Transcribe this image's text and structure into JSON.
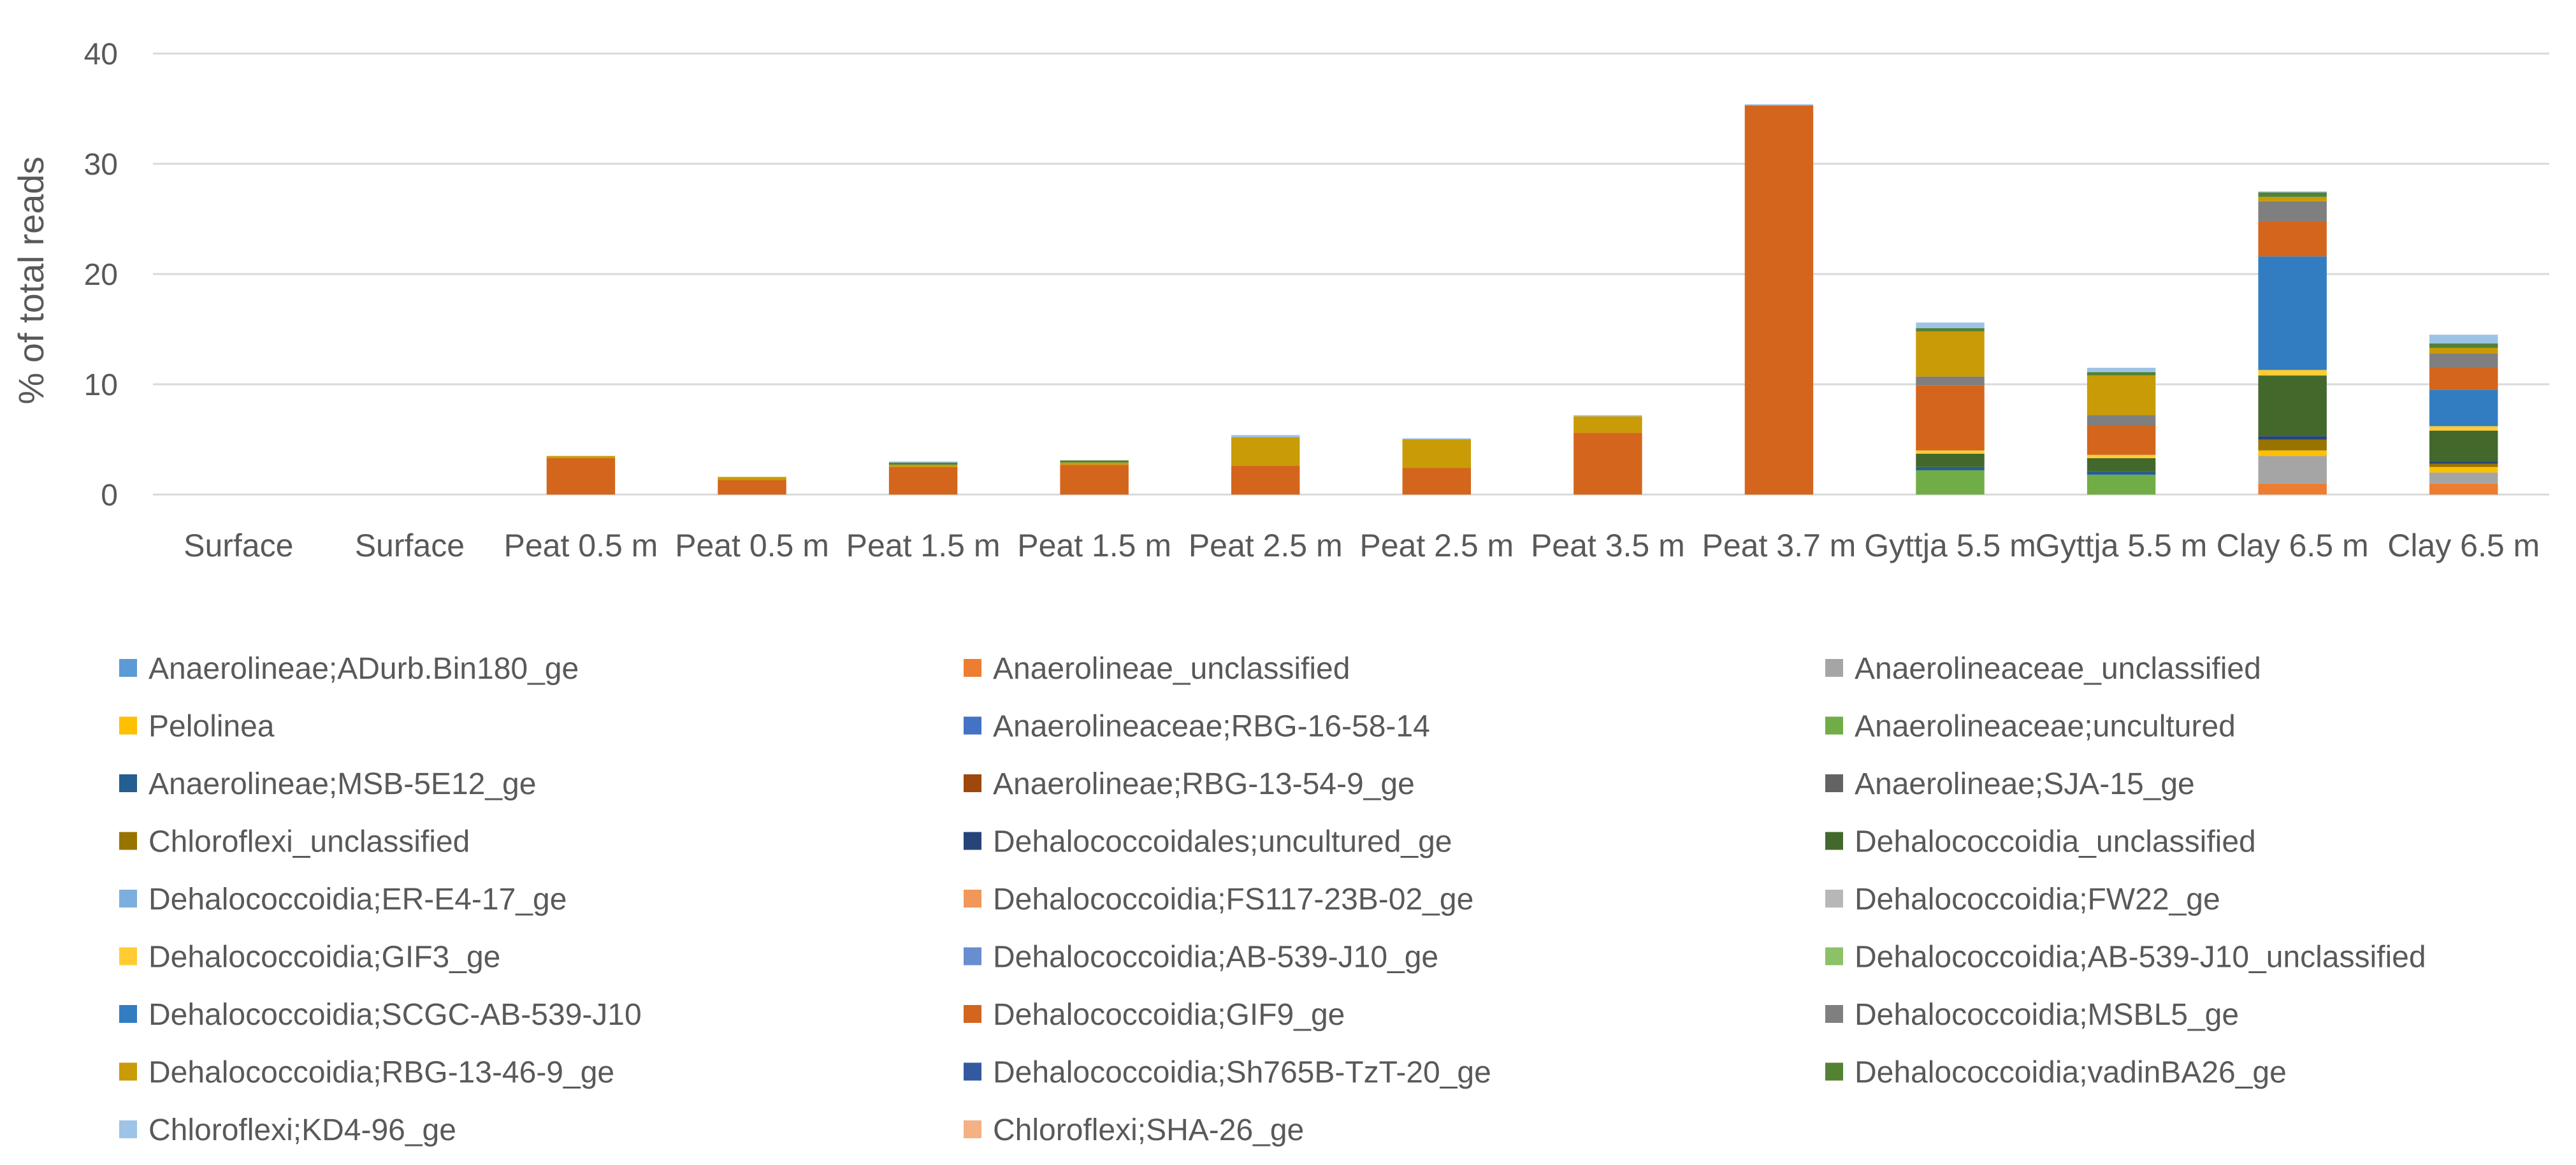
{
  "chart_data": {
    "type": "bar",
    "stacked": true,
    "title": "",
    "xlabel": "",
    "ylabel": "% of total reads",
    "ylim": [
      0,
      40
    ],
    "yticks": [
      0,
      10,
      20,
      30,
      40
    ],
    "grid": true,
    "legend_position": "bottom",
    "categories": [
      "Surface",
      "Surface",
      "Peat 0.5 m",
      "Peat 0.5 m",
      "Peat 1.5 m",
      "Peat 1.5 m",
      "Peat 2.5 m",
      "Peat 2.5 m",
      "Peat 3.5 m",
      "Peat 3.7 m",
      "Gyttja 5.5 m",
      "Gyttja 5.5 m",
      "Clay 6.5 m",
      "Clay 6.5 m"
    ],
    "series": [
      {
        "name": "Anaerolineae;ADurb.Bin180_ge",
        "color": "#5B9BD5",
        "values": [
          0,
          0,
          0,
          0,
          0,
          0,
          0,
          0,
          0,
          0,
          0,
          0,
          0,
          0
        ]
      },
      {
        "name": "Anaerolineae_unclassified",
        "color": "#ED7D31",
        "values": [
          0,
          0,
          0,
          0,
          0,
          0,
          0,
          0,
          0,
          0,
          0,
          0,
          1.0,
          1.0
        ]
      },
      {
        "name": "Anaerolineaceae_unclassified",
        "color": "#A5A5A5",
        "values": [
          0,
          0,
          0,
          0,
          0,
          0,
          0,
          0,
          0,
          0,
          0,
          0,
          2.5,
          1.0
        ]
      },
      {
        "name": "Pelolinea",
        "color": "#FFC000",
        "values": [
          0,
          0,
          0,
          0,
          0,
          0,
          0,
          0,
          0,
          0,
          0,
          0,
          0.5,
          0.5
        ]
      },
      {
        "name": "Anaerolineaceae;RBG-16-58-14",
        "color": "#4472C4",
        "values": [
          0,
          0,
          0,
          0,
          0,
          0,
          0,
          0,
          0,
          0,
          0,
          0,
          0,
          0
        ]
      },
      {
        "name": "Anaerolineaceae;uncultured",
        "color": "#70AD47",
        "values": [
          0,
          0,
          0,
          0,
          0,
          0,
          0,
          0,
          0,
          0,
          2.2,
          1.8,
          0,
          0
        ]
      },
      {
        "name": "Anaerolineae;MSB-5E12_ge",
        "color": "#255E91",
        "values": [
          0,
          0,
          0,
          0,
          0,
          0,
          0,
          0,
          0,
          0,
          0.3,
          0.3,
          0,
          0
        ]
      },
      {
        "name": "Anaerolineae;RBG-13-54-9_ge",
        "color": "#9E480E",
        "values": [
          0,
          0,
          0,
          0,
          0,
          0,
          0,
          0,
          0,
          0,
          0,
          0,
          0,
          0
        ]
      },
      {
        "name": "Anaerolineae;SJA-15_ge",
        "color": "#636363",
        "values": [
          0,
          0,
          0,
          0,
          0,
          0,
          0,
          0,
          0,
          0,
          0,
          0,
          0,
          0
        ]
      },
      {
        "name": "Chloroflexi_unclassified",
        "color": "#997300",
        "values": [
          0,
          0,
          0,
          0,
          0,
          0,
          0,
          0,
          0,
          0,
          0,
          0,
          1.0,
          0.3
        ]
      },
      {
        "name": "Dehalococcoidales;uncultured_ge",
        "color": "#264478",
        "values": [
          0,
          0,
          0,
          0,
          0,
          0,
          0,
          0,
          0,
          0,
          0,
          0,
          0.3,
          0.2
        ]
      },
      {
        "name": "Dehalococcoidia_unclassified",
        "color": "#43682B",
        "values": [
          0,
          0,
          0,
          0,
          0,
          0,
          0,
          0,
          0,
          0,
          1.2,
          1.2,
          5.5,
          2.8
        ]
      },
      {
        "name": "Dehalococcoidia;ER-E4-17_ge",
        "color": "#7CAFDD",
        "values": [
          0,
          0,
          0,
          0,
          0,
          0,
          0,
          0,
          0,
          0,
          0,
          0,
          0,
          0
        ]
      },
      {
        "name": "Dehalococcoidia;FS117-23B-02_ge",
        "color": "#F1975A",
        "values": [
          0,
          0,
          0,
          0,
          0,
          0,
          0,
          0,
          0,
          0,
          0,
          0,
          0,
          0
        ]
      },
      {
        "name": "Dehalococcoidia;FW22_ge",
        "color": "#B7B7B7",
        "values": [
          0,
          0,
          0,
          0,
          0,
          0,
          0,
          0,
          0,
          0,
          0,
          0,
          0,
          0
        ]
      },
      {
        "name": "Dehalococcoidia;GIF3_ge",
        "color": "#FFCD33",
        "values": [
          0,
          0,
          0,
          0,
          0,
          0,
          0,
          0,
          0,
          0,
          0.3,
          0.3,
          0.5,
          0.4
        ]
      },
      {
        "name": "Dehalococcoidia;AB-539-J10_ge",
        "color": "#698ED0",
        "values": [
          0,
          0,
          0,
          0,
          0,
          0,
          0,
          0,
          0,
          0,
          0,
          0,
          0,
          0
        ]
      },
      {
        "name": "Dehalococcoidia;AB-539-J10_unclassified",
        "color": "#8CC168",
        "values": [
          0,
          0,
          0,
          0,
          0,
          0,
          0,
          0,
          0,
          0,
          0,
          0,
          0,
          0
        ]
      },
      {
        "name": "Dehalococcoidia;SCGC-AB-539-J10",
        "color": "#327DC2",
        "values": [
          0,
          0,
          0,
          0,
          0,
          0,
          0,
          0,
          0,
          0,
          0,
          0,
          10.3,
          3.3
        ]
      },
      {
        "name": "Dehalococcoidia;GIF9_ge",
        "color": "#D4651C",
        "values": [
          0,
          0,
          3.3,
          1.3,
          2.5,
          2.7,
          2.6,
          2.4,
          5.6,
          35.3,
          5.9,
          2.7,
          3.2,
          2.0
        ]
      },
      {
        "name": "Dehalococcoidia;MSBL5_ge",
        "color": "#7F7F7F",
        "values": [
          0,
          0,
          0,
          0,
          0,
          0,
          0,
          0,
          0,
          0,
          0.8,
          0.9,
          1.8,
          1.3
        ]
      },
      {
        "name": "Dehalococcoidia;RBG-13-46-9_ge",
        "color": "#C99B07",
        "values": [
          0,
          0,
          0.2,
          0.3,
          0.2,
          0.2,
          2.6,
          2.6,
          1.5,
          0,
          4.1,
          3.6,
          0.4,
          0.5
        ]
      },
      {
        "name": "Dehalococcoidia;Sh765B-TzT-20_ge",
        "color": "#335AA1",
        "values": [
          0,
          0,
          0,
          0,
          0,
          0,
          0,
          0,
          0,
          0,
          0,
          0,
          0,
          0
        ]
      },
      {
        "name": "Dehalococcoidia;vadinBA26_ge",
        "color": "#548235",
        "values": [
          0,
          0,
          0,
          0,
          0.2,
          0.2,
          0,
          0,
          0,
          0,
          0.3,
          0.3,
          0.4,
          0.4
        ]
      },
      {
        "name": "Chloroflexi;KD4-96_ge",
        "color": "#9DC3E6",
        "values": [
          0,
          0,
          0,
          0,
          0.1,
          0,
          0.2,
          0.1,
          0.1,
          0.1,
          0.5,
          0.4,
          0.1,
          0.8
        ]
      },
      {
        "name": "Chloroflexi;SHA-26_ge",
        "color": "#F4B183",
        "values": [
          0,
          0,
          0,
          0,
          0,
          0,
          0,
          0,
          0,
          0,
          0,
          0,
          0,
          0
        ]
      }
    ]
  }
}
